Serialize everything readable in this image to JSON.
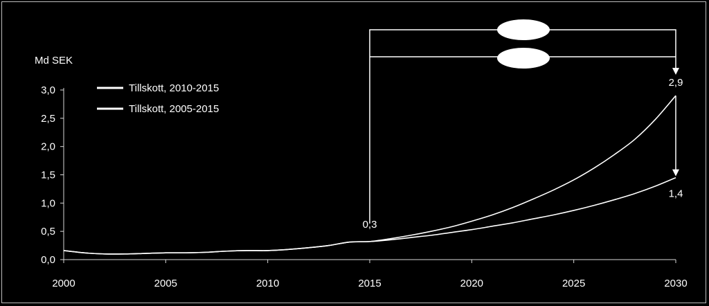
{
  "chart_data": {
    "type": "line",
    "ylabel": "Md SEK",
    "xlim": [
      2000,
      2030
    ],
    "ylim": [
      0,
      3.0
    ],
    "x_ticks": [
      "2000",
      "2005",
      "2010",
      "2015",
      "2020",
      "2025",
      "2030"
    ],
    "y_ticks": [
      "0,0",
      "0,5",
      "1,0",
      "1,5",
      "2,0",
      "2,5",
      "3,0"
    ],
    "grid": false,
    "legend": "top-left",
    "series": [
      {
        "name": "Tillskott, 2010-2015",
        "color": "#ffffff",
        "x": [
          2000,
          2001,
          2002,
          2003,
          2004,
          2005,
          2006,
          2007,
          2008,
          2009,
          2010,
          2011,
          2012,
          2013,
          2014,
          2015,
          2016,
          2017,
          2018,
          2019,
          2020,
          2021,
          2022,
          2023,
          2024,
          2025,
          2026,
          2027,
          2028,
          2029,
          2030
        ],
        "values": [
          0.16,
          0.12,
          0.1,
          0.1,
          0.11,
          0.12,
          0.12,
          0.13,
          0.15,
          0.16,
          0.16,
          0.18,
          0.21,
          0.25,
          0.31,
          0.32,
          0.37,
          0.43,
          0.5,
          0.58,
          0.68,
          0.79,
          0.92,
          1.07,
          1.23,
          1.41,
          1.62,
          1.86,
          2.13,
          2.48,
          2.9
        ]
      },
      {
        "name": "Tillskott, 2005-2015",
        "color": "#ffffff",
        "x": [
          2000,
          2001,
          2002,
          2003,
          2004,
          2005,
          2006,
          2007,
          2008,
          2009,
          2010,
          2011,
          2012,
          2013,
          2014,
          2015,
          2016,
          2017,
          2018,
          2019,
          2020,
          2021,
          2022,
          2023,
          2024,
          2025,
          2026,
          2027,
          2028,
          2029,
          2030
        ],
        "values": [
          0.16,
          0.12,
          0.1,
          0.1,
          0.11,
          0.12,
          0.12,
          0.13,
          0.15,
          0.16,
          0.16,
          0.18,
          0.21,
          0.25,
          0.31,
          0.32,
          0.35,
          0.39,
          0.43,
          0.48,
          0.53,
          0.59,
          0.65,
          0.72,
          0.79,
          0.87,
          0.96,
          1.06,
          1.17,
          1.3,
          1.45
        ]
      }
    ],
    "annotations": [
      {
        "text": "0,3",
        "x": 2015,
        "y": 0.32
      },
      {
        "text": "2,9",
        "x": 2030,
        "y": 2.9
      },
      {
        "text": "1,4",
        "x": 2030,
        "y": 1.45
      }
    ]
  }
}
